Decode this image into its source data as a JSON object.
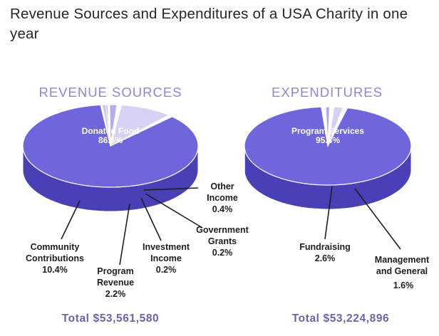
{
  "title": "Revenue Sources and Expenditures of a USA Charity in one year",
  "colors": {
    "slice_top": "#6f66dc",
    "slice_side": "#4a40b6",
    "heading": "#8f86dc",
    "total": "#6a64ac",
    "leader": "#1e1e1e"
  },
  "chart_data": [
    {
      "type": "pie",
      "title": "REVENUE SOURCES",
      "total": "Total $53,561,580",
      "slices": [
        {
          "label": "Donated Food",
          "value": 86.6,
          "value_text": "86.6%",
          "top": "#6f66dc",
          "side": "#4a40b6"
        },
        {
          "label": "Community Contributions",
          "value": 10.4,
          "value_text": "10.4%",
          "top": "#d6d2f4",
          "side": "#9b93de"
        },
        {
          "label": "Program Revenue",
          "value": 2.2,
          "value_text": "2.2%",
          "top": "#b4aeea",
          "side": "#7f76d6"
        },
        {
          "label": "Investment Income",
          "value": 0.2,
          "value_text": "0.2%",
          "top": "#c2bcf0",
          "side": "#8f87da"
        },
        {
          "label": "Government Grants",
          "value": 0.2,
          "value_text": "0.2%",
          "top": "#a49ce6",
          "side": "#6d64cc"
        },
        {
          "label": "Other Income",
          "value": 0.4,
          "value_text": "0.4%",
          "top": "#cdc8f2",
          "side": "#9a92de"
        }
      ]
    },
    {
      "type": "pie",
      "title": "EXPENDITURES",
      "total": "Total $53,224,896",
      "slices": [
        {
          "label": "Program Services",
          "value": 95.8,
          "value_text": "95.8%",
          "top": "#6f66dc",
          "side": "#4a40b6"
        },
        {
          "label": "Fundraising",
          "value": 2.6,
          "value_text": "2.6%",
          "top": "#d6d2f4",
          "side": "#9b93de"
        },
        {
          "label": "Management and General",
          "value": 1.6,
          "value_text": "1.6%",
          "top": "#b0aaea",
          "side": "#7a71d4"
        }
      ]
    }
  ]
}
